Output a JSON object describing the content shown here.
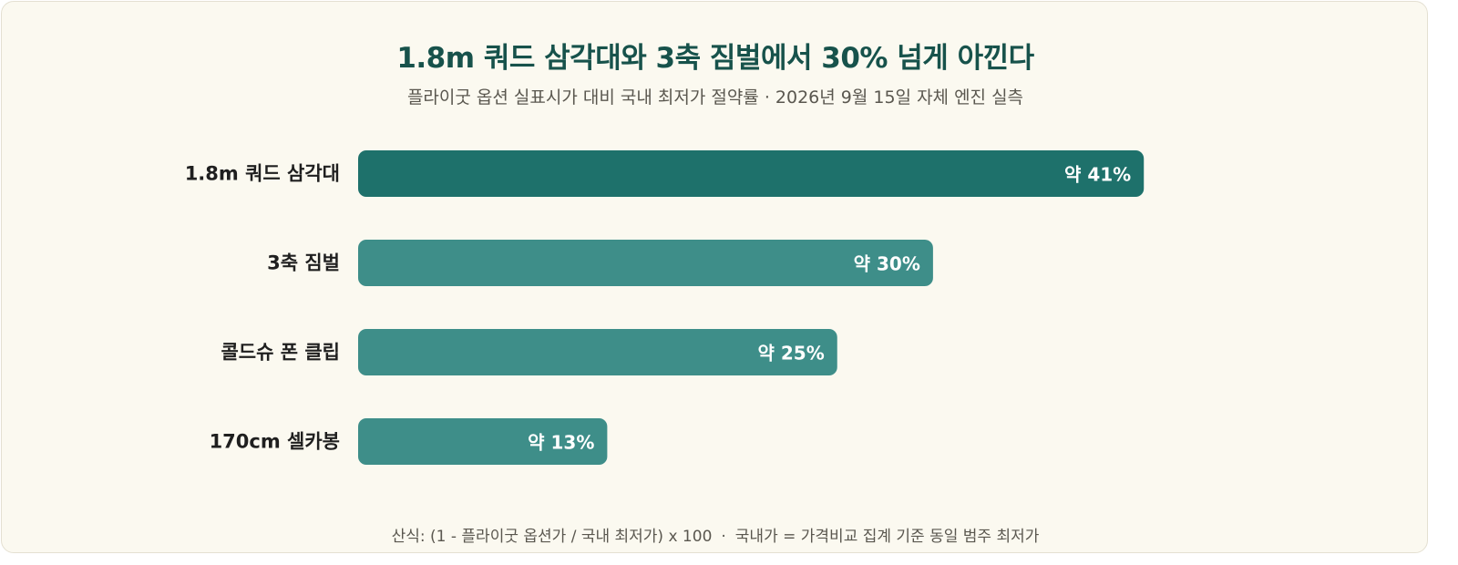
{
  "chart_data": {
    "type": "bar",
    "orientation": "horizontal",
    "title": "1.8m 쿼드 삼각대와 3축 짐벌에서 30% 넘게 아낀다",
    "subtitle": "플라이굿 옵션 실표시가 대비 국내 최저가 절약률 · 2026년 9월 15일 자체 엔진 실측",
    "categories": [
      "1.8m 쿼드 삼각대",
      "3축 짐벌",
      "콜드슈 폰 클립",
      "170cm 셀카봉"
    ],
    "values": [
      41,
      30,
      25,
      13
    ],
    "value_labels": [
      "약 41%",
      "약 30%",
      "약 25%",
      "약 13%"
    ],
    "unit": "%",
    "xlim": [
      0,
      80
    ],
    "grid": false,
    "legend": "none",
    "colors": {
      "highlight": "#1e716b",
      "default": "#3e8e89",
      "label_text": "#ffffff",
      "category_text": "#1f1f1f"
    },
    "highlight_index": 0
  },
  "footer": {
    "formula": "산식: (1 - 플라이굿 옵션가 / 국내 최저가) x 100",
    "separator": "·",
    "note": "국내가 = 가격비교 집계 기준 동일 범주 최저가"
  }
}
